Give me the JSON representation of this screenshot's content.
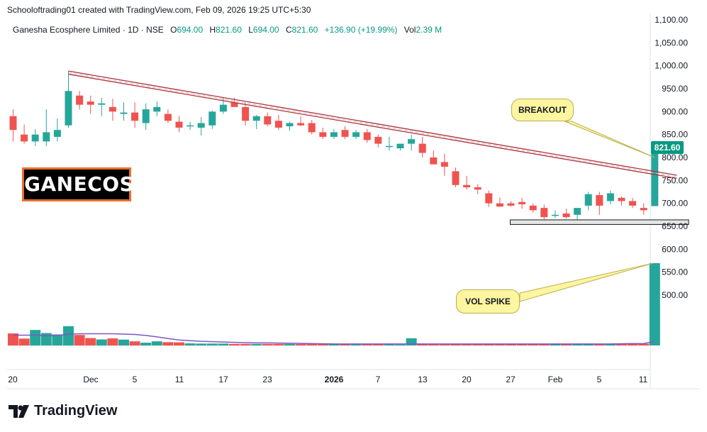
{
  "header": {
    "credit": "Schooloftrading01 created with TradingView.com, Feb 09, 2026 19:25 UTC+5:30",
    "symbol_line": "Ganesha Ecosphere Limited · 1D · NSE",
    "o_label": "O",
    "o_value": "694.00",
    "h_label": "H",
    "h_value": "821.60",
    "l_label": "L",
    "l_value": "694.00",
    "c_label": "C",
    "c_value": "821.60",
    "change": "+136.90 (+19.99%)",
    "vol_label": "Vol",
    "vol_value": "2.39 M"
  },
  "badge": {
    "text": "GANECOS"
  },
  "annotations": {
    "breakout": "BREAKOUT",
    "vol_spike": "VOL SPIKE"
  },
  "branding": {
    "logo_text": "TradingView"
  },
  "colors": {
    "up": "#26a69a",
    "down": "#ef5350",
    "trend": "#b0303a",
    "vol_ma": "#7e57c2",
    "callout": "#fdf5a0",
    "badge_border": "#e8702a",
    "price_tag": "#089981"
  },
  "chart_data": {
    "type": "candlestick",
    "price_axis": {
      "min": 450,
      "max": 1100,
      "ticks": [
        "500.00",
        "550.00",
        "600.00",
        "650.00",
        "700.00",
        "750.00",
        "800.00",
        "850.00",
        "900.00",
        "950.00",
        "1,000.00",
        "1,050.00",
        "1,100.00"
      ]
    },
    "x_ticks": [
      "20",
      "Dec",
      "5",
      "11",
      "17",
      "23",
      "2026",
      "7",
      "13",
      "20",
      "27",
      "Feb",
      "5",
      "11"
    ],
    "last_price_label": "821.60",
    "candles": [
      [
        890,
        905,
        835,
        860
      ],
      [
        850,
        872,
        830,
        835
      ],
      [
        835,
        862,
        825,
        850
      ],
      [
        835,
        905,
        825,
        855
      ],
      [
        845,
        885,
        835,
        860
      ],
      [
        870,
        988,
        865,
        945
      ],
      [
        935,
        945,
        905,
        915
      ],
      [
        922,
        935,
        895,
        915
      ],
      [
        915,
        930,
        890,
        918
      ],
      [
        910,
        928,
        880,
        900
      ],
      [
        895,
        920,
        880,
        898
      ],
      [
        898,
        920,
        865,
        880
      ],
      [
        875,
        918,
        860,
        905
      ],
      [
        900,
        922,
        890,
        910
      ],
      [
        895,
        905,
        875,
        880
      ],
      [
        878,
        890,
        855,
        865
      ],
      [
        868,
        878,
        860,
        870
      ],
      [
        865,
        888,
        848,
        875
      ],
      [
        870,
        902,
        862,
        900
      ],
      [
        900,
        930,
        895,
        915
      ],
      [
        920,
        930,
        910,
        910
      ],
      [
        910,
        920,
        870,
        880
      ],
      [
        880,
        893,
        862,
        890
      ],
      [
        890,
        898,
        868,
        872
      ],
      [
        880,
        893,
        860,
        865
      ],
      [
        868,
        878,
        858,
        875
      ],
      [
        875,
        890,
        868,
        870
      ],
      [
        875,
        882,
        850,
        855
      ],
      [
        855,
        865,
        840,
        845
      ],
      [
        845,
        862,
        840,
        855
      ],
      [
        860,
        868,
        840,
        845
      ],
      [
        845,
        860,
        840,
        855
      ],
      [
        855,
        862,
        832,
        838
      ],
      [
        845,
        850,
        822,
        830
      ],
      [
        825,
        845,
        815,
        825
      ],
      [
        820,
        830,
        815,
        830
      ],
      [
        830,
        850,
        815,
        840
      ],
      [
        830,
        845,
        800,
        810
      ],
      [
        800,
        815,
        785,
        785
      ],
      [
        790,
        808,
        760,
        780
      ],
      [
        770,
        778,
        735,
        740
      ],
      [
        740,
        760,
        730,
        735
      ],
      [
        735,
        742,
        720,
        730
      ],
      [
        722,
        728,
        692,
        700
      ],
      [
        700,
        713,
        692,
        693
      ],
      [
        700,
        705,
        693,
        695
      ],
      [
        703,
        712,
        688,
        698
      ],
      [
        695,
        700,
        680,
        685
      ],
      [
        690,
        697,
        665,
        670
      ],
      [
        673,
        685,
        668,
        675
      ],
      [
        678,
        688,
        667,
        670
      ],
      [
        675,
        690,
        660,
        690
      ],
      [
        695,
        725,
        685,
        720
      ],
      [
        718,
        725,
        675,
        695
      ],
      [
        705,
        728,
        698,
        722
      ],
      [
        712,
        715,
        695,
        705
      ],
      [
        705,
        712,
        690,
        695
      ],
      [
        690,
        700,
        675,
        685
      ],
      [
        694,
        822,
        694,
        822
      ]
    ],
    "volume_k": [
      350,
      200,
      450,
      360,
      320,
      560,
      305,
      215,
      175,
      205,
      170,
      120,
      80,
      120,
      95,
      90,
      60,
      55,
      55,
      55,
      45,
      45,
      45,
      45,
      45,
      45,
      40,
      40,
      40,
      35,
      35,
      30,
      30,
      35,
      30,
      28,
      210,
      35,
      30,
      30,
      30,
      30,
      40,
      40,
      40,
      40,
      45,
      45,
      45,
      45,
      40,
      40,
      40,
      45,
      40,
      40,
      45,
      50,
      2390
    ],
    "volume_ma_k": [
      300,
      300,
      300,
      280,
      290,
      330,
      340,
      340,
      340,
      340,
      330,
      320,
      290,
      250,
      200,
      160,
      140,
      120,
      110,
      100,
      90,
      80,
      75,
      75,
      70,
      65,
      60,
      55,
      50,
      45,
      45,
      45,
      45,
      45,
      45,
      45,
      45,
      45,
      45,
      45,
      45,
      45,
      45,
      45,
      45,
      45,
      45,
      45,
      45,
      45,
      45,
      45,
      45,
      45,
      45,
      50,
      55,
      55,
      120
    ],
    "trendline": {
      "from": {
        "bar": 5,
        "price": 985
      },
      "to": {
        "bar": 60,
        "price": 758
      }
    },
    "support_zone": {
      "from_bar": 45,
      "to_bar": 61,
      "low": 654,
      "high": 664
    }
  }
}
